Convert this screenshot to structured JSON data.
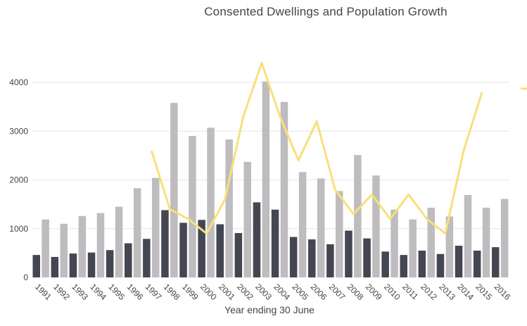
{
  "chart_data": {
    "type": "bar",
    "title": "Consented Dwellings and Population Growth",
    "xlabel": "Year ending 30 June",
    "ylabel": "",
    "ylim": [
      0,
      4000
    ],
    "yticks": [
      "0",
      "1000",
      "2000",
      "3000",
      "4000"
    ],
    "grid": true,
    "categories": [
      "1991",
      "1992",
      "1993",
      "1994",
      "1995",
      "1996",
      "1997",
      "1998",
      "1999",
      "2000",
      "2001",
      "2002",
      "2003",
      "2004",
      "2005",
      "2006",
      "2007",
      "2008",
      "2009",
      "2010",
      "2011",
      "2012",
      "2013",
      "2014",
      "2015",
      "2016"
    ],
    "series": [
      {
        "kind": "bar",
        "color": "#444651",
        "values": [
          460,
          420,
          490,
          510,
          560,
          700,
          790,
          1380,
          1120,
          1180,
          1090,
          910,
          1540,
          1390,
          830,
          780,
          680,
          960,
          800,
          530,
          460,
          550,
          480,
          650,
          550,
          620
        ]
      },
      {
        "kind": "bar",
        "color": "#bebcbe",
        "values": [
          1190,
          1100,
          1260,
          1320,
          1450,
          1830,
          2040,
          3580,
          2900,
          3070,
          2830,
          2370,
          4020,
          3600,
          2160,
          2030,
          1770,
          2510,
          2090,
          1390,
          1190,
          1430,
          1250,
          1690,
          1430,
          1610
        ]
      },
      {
        "kind": "line",
        "color": "#f8e07a",
        "values": [
          null,
          null,
          null,
          null,
          null,
          null,
          2600,
          1400,
          1200,
          900,
          1600,
          3300,
          4400,
          3300,
          2400,
          3200,
          1800,
          1300,
          1700,
          1200,
          1700,
          1200,
          900,
          2600,
          3800,
          null
        ]
      }
    ],
    "legend": "right"
  }
}
